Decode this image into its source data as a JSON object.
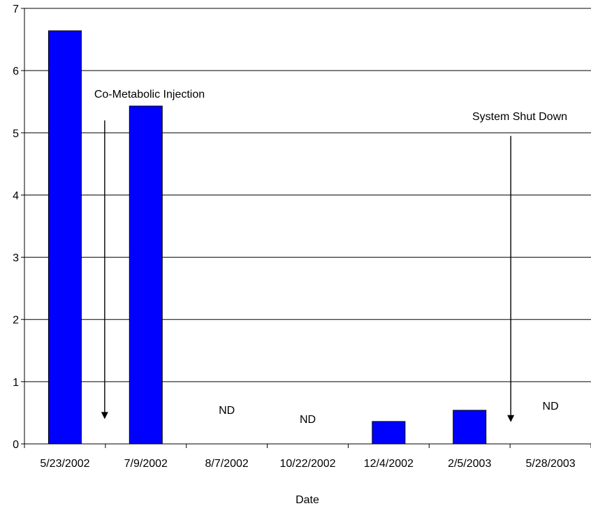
{
  "chart_data": {
    "type": "bar",
    "title": "",
    "xlabel": "Date",
    "ylabel": "",
    "ylim": [
      0,
      7
    ],
    "yticks": [
      0,
      1,
      2,
      3,
      4,
      5,
      6,
      7
    ],
    "grid": true,
    "categories": [
      "5/23/2002",
      "7/9/2002",
      "8/7/2002",
      "10/22/2002",
      "12/4/2002",
      "2/5/2003",
      "5/28/2003"
    ],
    "values": [
      6.64,
      5.43,
      null,
      null,
      0.36,
      0.54,
      null
    ],
    "value_labels": [
      "",
      "",
      "ND",
      "ND",
      "",
      "",
      "ND"
    ],
    "bar_color": "#0000ff",
    "annotations": [
      {
        "text": "Co-Metabolic Injection",
        "x_between": [
          "5/23/2002",
          "7/9/2002"
        ],
        "arrow_from_y": 5.2,
        "arrow_to_y": 0.4
      },
      {
        "text": "System Shut Down",
        "x_between": [
          "2/5/2003",
          "5/28/2003"
        ],
        "arrow_from_y": 4.95,
        "arrow_to_y": 0.35
      }
    ]
  }
}
